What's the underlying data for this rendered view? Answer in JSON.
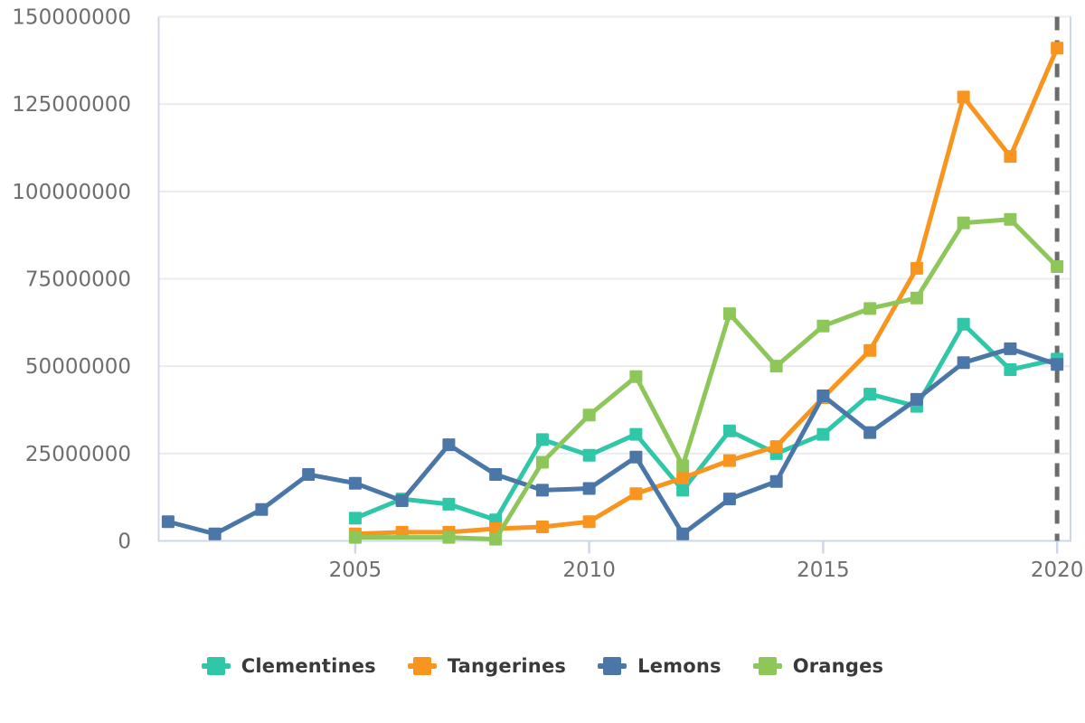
{
  "chart_data": {
    "type": "line",
    "title": "",
    "xlabel": "",
    "ylabel": "",
    "marker": "square",
    "grid": "horizontal",
    "legend_position": "bottom-center",
    "x_axis": {
      "ticks": [
        2005,
        2010,
        2015,
        2020
      ],
      "range": [
        2000.8,
        2020.3
      ]
    },
    "y_axis": {
      "ticks": [
        0,
        25000000,
        50000000,
        75000000,
        100000000,
        125000000,
        150000000
      ],
      "tick_labels": [
        "0",
        "25000000",
        "50000000",
        "75000000",
        "100000000",
        "125000000",
        "150000000"
      ],
      "range": [
        0,
        150000000
      ]
    },
    "reference_line": {
      "type": "vertical-dashed",
      "x": 2020
    },
    "series": [
      {
        "name": "Clementines",
        "color": "#2FC7A7",
        "points": [
          [
            2005,
            6500000
          ],
          [
            2006,
            12000000
          ],
          [
            2007,
            10500000
          ],
          [
            2008,
            6000000
          ],
          [
            2009,
            29000000
          ],
          [
            2010,
            24500000
          ],
          [
            2011,
            30500000
          ],
          [
            2012,
            14500000
          ],
          [
            2013,
            31500000
          ],
          [
            2014,
            25000000
          ],
          [
            2015,
            30500000
          ],
          [
            2016,
            42000000
          ],
          [
            2017,
            38500000
          ],
          [
            2018,
            62000000
          ],
          [
            2019,
            49000000
          ],
          [
            2020,
            52000000
          ]
        ]
      },
      {
        "name": "Tangerines",
        "color": "#F9941F",
        "points": [
          [
            2005,
            2000000
          ],
          [
            2006,
            2500000
          ],
          [
            2007,
            2500000
          ],
          [
            2008,
            3500000
          ],
          [
            2009,
            4000000
          ],
          [
            2010,
            5500000
          ],
          [
            2011,
            13500000
          ],
          [
            2012,
            18000000
          ],
          [
            2013,
            23000000
          ],
          [
            2014,
            27000000
          ],
          [
            2015,
            41000000
          ],
          [
            2016,
            54500000
          ],
          [
            2017,
            78000000
          ],
          [
            2018,
            127000000
          ],
          [
            2019,
            110000000
          ],
          [
            2020,
            141000000
          ]
        ]
      },
      {
        "name": "Lemons",
        "color": "#4B76A8",
        "points": [
          [
            2001,
            5500000
          ],
          [
            2002,
            2000000
          ],
          [
            2003,
            9000000
          ],
          [
            2004,
            19000000
          ],
          [
            2005,
            16500000
          ],
          [
            2006,
            11500000
          ],
          [
            2007,
            27500000
          ],
          [
            2008,
            19000000
          ],
          [
            2009,
            14500000
          ],
          [
            2010,
            15000000
          ],
          [
            2011,
            24000000
          ],
          [
            2012,
            2000000
          ],
          [
            2013,
            12000000
          ],
          [
            2014,
            17000000
          ],
          [
            2015,
            41500000
          ],
          [
            2016,
            31000000
          ],
          [
            2017,
            40500000
          ],
          [
            2018,
            51000000
          ],
          [
            2019,
            55000000
          ],
          [
            2020,
            50500000
          ]
        ]
      },
      {
        "name": "Oranges",
        "color": "#8DC75A",
        "points": [
          [
            2005,
            1000000
          ],
          [
            2007,
            1000000
          ],
          [
            2008,
            500000
          ],
          [
            2009,
            22500000
          ],
          [
            2010,
            36000000
          ],
          [
            2011,
            47000000
          ],
          [
            2012,
            21500000
          ],
          [
            2013,
            65000000
          ],
          [
            2014,
            50000000
          ],
          [
            2015,
            61500000
          ],
          [
            2016,
            66500000
          ],
          [
            2017,
            69500000
          ],
          [
            2018,
            91000000
          ],
          [
            2019,
            92000000
          ],
          [
            2020,
            78500000
          ]
        ]
      }
    ]
  },
  "legend": {
    "items": [
      "Clementines",
      "Tangerines",
      "Lemons",
      "Oranges"
    ]
  },
  "style": {
    "axis_line_color": "#CDD7E8",
    "gridline_color": "#EBEBEB",
    "tick_label_color": "#6E6E6E",
    "legend_text_color": "#3A3A3A",
    "dashed_line_color": "#6C6C6C",
    "background": "#FFFFFF"
  }
}
